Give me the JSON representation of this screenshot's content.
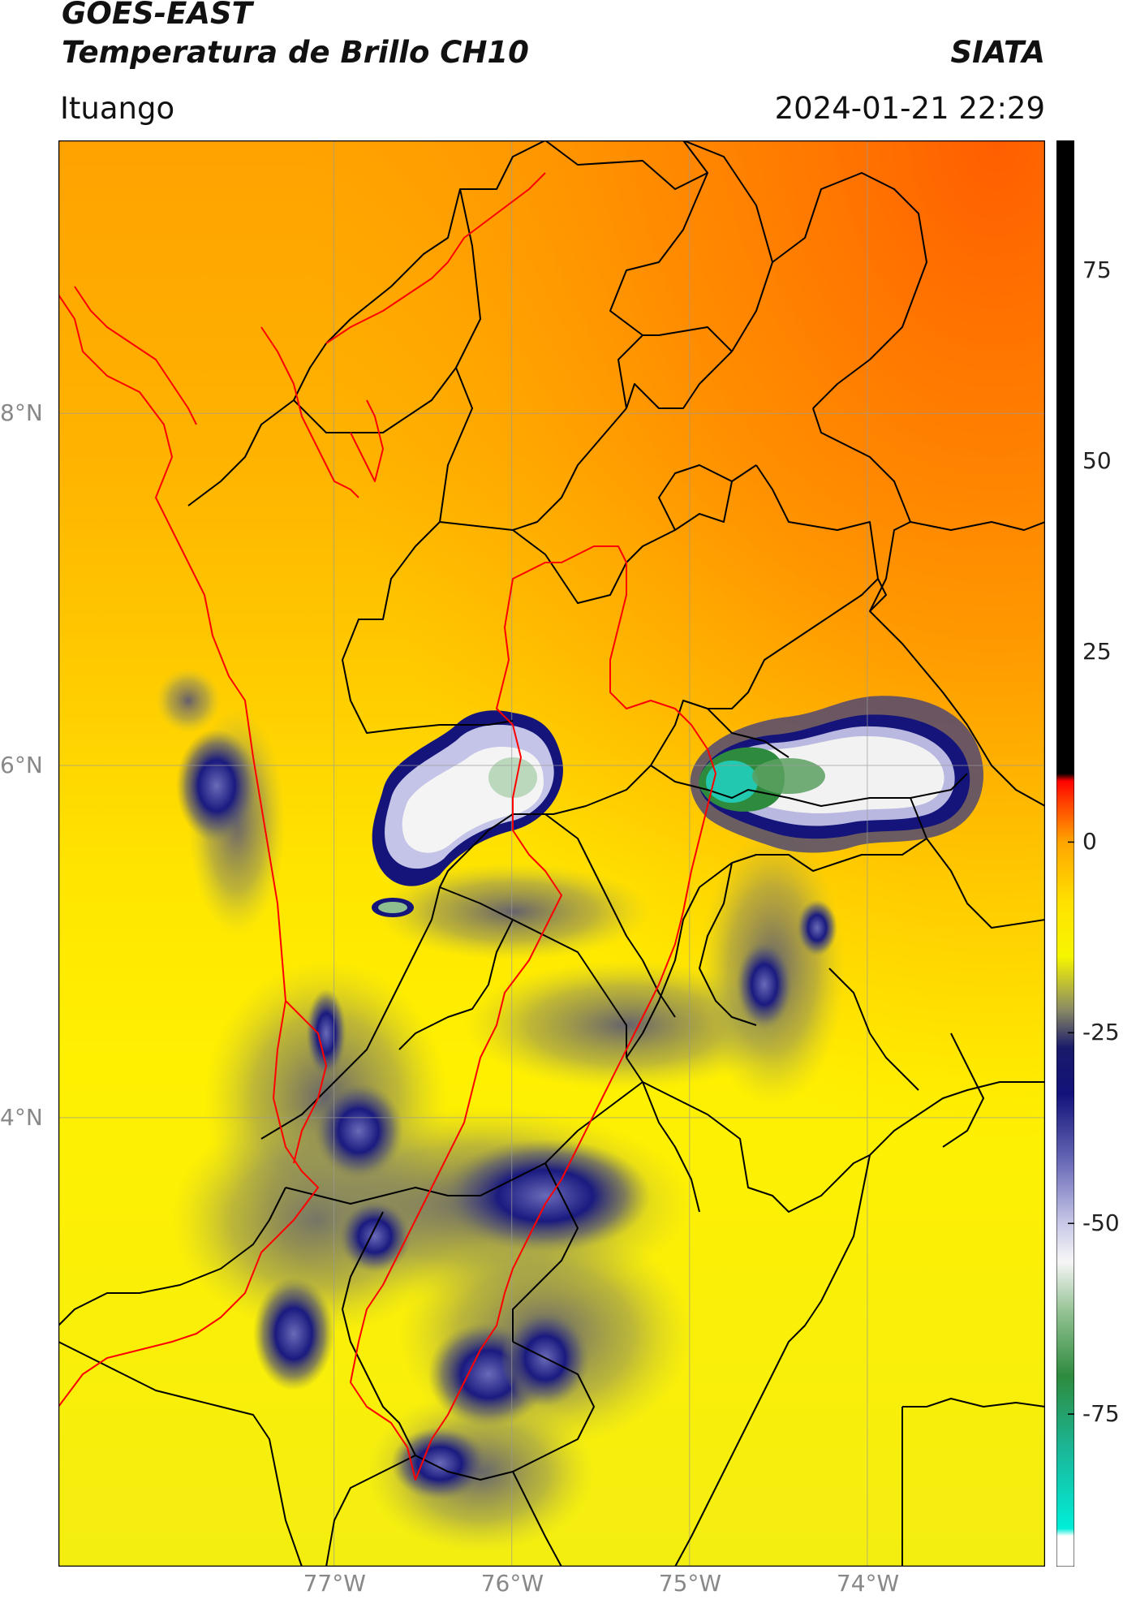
{
  "header": {
    "satellite": "GOES-EAST",
    "product": "Temperatura de Brillo CH10",
    "organization": "SIATA",
    "region": "Ituango",
    "datetime": "2024-01-21 22:29"
  },
  "map": {
    "lon_range": [
      -78.55,
      -73.0
    ],
    "lat_range": [
      1.45,
      9.55
    ],
    "lat_ticks": [
      {
        "value": 8,
        "label": "8°N"
      },
      {
        "value": 6,
        "label": "6°N"
      },
      {
        "value": 4,
        "label": "4°N"
      }
    ],
    "lon_ticks": [
      {
        "value": -77,
        "label": "77°W"
      },
      {
        "value": -76,
        "label": "76°W"
      },
      {
        "value": -75,
        "label": "75°W"
      },
      {
        "value": -74,
        "label": "74°W"
      }
    ],
    "gridlines": true,
    "colors": {
      "warm_north": "#ff6a00",
      "warm_mid": "#ffa500",
      "warm_south": "#ffee00",
      "cold_blue": "#1a1a80",
      "cold_white": "#f4f4f4",
      "cold_green": "#2f8f3f",
      "cold_cyan": "#22d3c0",
      "boundary_black": "#000000",
      "boundary_red": "#ff0000"
    }
  },
  "colorbar": {
    "range": [
      -95,
      92
    ],
    "ticks": [
      {
        "value": 75,
        "label": "75"
      },
      {
        "value": 50,
        "label": "50"
      },
      {
        "value": 25,
        "label": "25"
      },
      {
        "value": 0,
        "label": "0"
      },
      {
        "value": -25,
        "label": "-25"
      },
      {
        "value": -50,
        "label": "-50"
      },
      {
        "value": -75,
        "label": "-75"
      }
    ],
    "stops": [
      {
        "value": -95,
        "color": "#ffffff"
      },
      {
        "value": -91,
        "color": "#ffffff"
      },
      {
        "value": -90,
        "color": "#00eed8"
      },
      {
        "value": -80,
        "color": "#1ab89a"
      },
      {
        "value": -70,
        "color": "#2e8b3e"
      },
      {
        "value": -62,
        "color": "#8fbf8f"
      },
      {
        "value": -55,
        "color": "#f6f6f6"
      },
      {
        "value": -50,
        "color": "#c8c8e8"
      },
      {
        "value": -42,
        "color": "#6a6ab8"
      },
      {
        "value": -33,
        "color": "#12127a"
      },
      {
        "value": -27,
        "color": "#1a1a6a"
      },
      {
        "value": -22,
        "color": "#8a8a66"
      },
      {
        "value": -15,
        "color": "#f6f600"
      },
      {
        "value": -8,
        "color": "#ffe200"
      },
      {
        "value": 0,
        "color": "#ffa500"
      },
      {
        "value": 6,
        "color": "#ff3000"
      },
      {
        "value": 8,
        "color": "#ff0000"
      },
      {
        "value": 9,
        "color": "#000000"
      },
      {
        "value": 92,
        "color": "#000000"
      }
    ]
  }
}
